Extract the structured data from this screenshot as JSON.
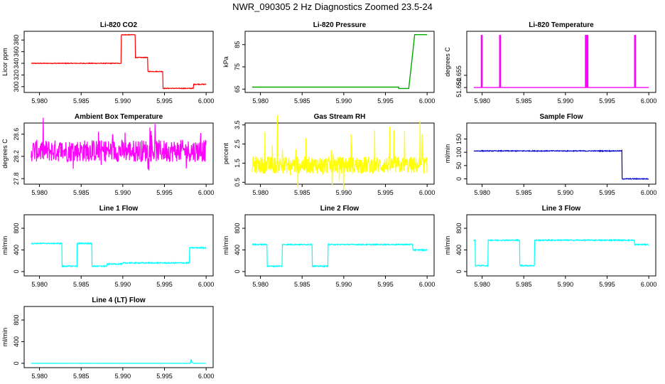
{
  "title": "NWR_090305  2 Hz Diagnostics Zoomed 23.5-24",
  "chart_data": [
    {
      "type": "line",
      "id": "co2",
      "title": "Li-820 CO2",
      "ylabel": "Licor ppm",
      "color": "#ff0000",
      "xlim": [
        5.979,
        6.0
      ],
      "ylim": [
        290,
        395
      ],
      "xticks": [
        "5.980",
        "5.985",
        "5.990",
        "5.995",
        "6.000"
      ],
      "yticks": [
        "300",
        "320",
        "340",
        "360",
        "380"
      ],
      "noise": 0.6,
      "spike": 0,
      "x": [
        5.979,
        5.9898,
        5.9898,
        5.9915,
        5.9915,
        5.993,
        5.993,
        5.9948,
        5.9948,
        5.9985,
        5.9985,
        6.0
      ],
      "y": [
        340,
        340,
        389,
        389,
        350,
        350,
        326,
        326,
        297,
        297,
        304,
        304
      ]
    },
    {
      "type": "line",
      "id": "pressure",
      "title": "Li-820 Pressure",
      "ylabel": "kPa",
      "color": "#00aa00",
      "xlim": [
        5.979,
        6.0
      ],
      "ylim": [
        63.5,
        91
      ],
      "xticks": [
        "5.980",
        "5.985",
        "5.990",
        "5.995",
        "6.000"
      ],
      "yticks": [
        "65",
        "75",
        "85"
      ],
      "noise": 0,
      "spike": 0,
      "x": [
        5.979,
        5.9966,
        5.9966,
        5.9978,
        5.9983,
        5.9985,
        6.0
      ],
      "y": [
        65.9,
        65.9,
        65.3,
        65.3,
        82,
        89.5,
        89.5
      ]
    },
    {
      "type": "line",
      "id": "licor-temp",
      "title": "Li-820 Temperature",
      "ylabel": "degrees C",
      "color": "#ff00ff",
      "xlim": [
        5.979,
        6.0
      ],
      "ylim": [
        51.648,
        51.673
      ],
      "xticks": [
        "5.980",
        "5.985",
        "5.990",
        "5.995",
        "6.000"
      ],
      "yticks": [
        "51.650",
        "51.655"
      ],
      "noise": 0,
      "spike": 0,
      "x": [
        5.979,
        5.9799,
        5.9799,
        5.98,
        5.98,
        5.9821,
        5.9821,
        5.9822,
        5.9822,
        5.9924,
        5.9924,
        5.9925,
        5.9925,
        5.9926,
        5.9926,
        5.9927,
        5.9927,
        5.9983,
        5.9983,
        5.9984,
        5.9984,
        6.0
      ],
      "y": [
        51.65,
        51.65,
        51.6713,
        51.6713,
        51.65,
        51.65,
        51.6713,
        51.6713,
        51.65,
        51.65,
        51.6713,
        51.6713,
        51.65,
        51.65,
        51.6713,
        51.6713,
        51.65,
        51.65,
        51.6713,
        51.6713,
        51.65,
        51.65
      ]
    },
    {
      "type": "line",
      "id": "ambient-temp",
      "title": "Ambient Box Temperature",
      "ylabel": "degrees C",
      "color": "#ff00ff",
      "xlim": [
        5.979,
        6.0
      ],
      "ylim": [
        27.7,
        28.8
      ],
      "xticks": [
        "5.980",
        "5.985",
        "5.990",
        "5.995",
        "6.000"
      ],
      "yticks": [
        "27.8",
        "28.2",
        "28.6"
      ],
      "noise": 0.2,
      "spike": 0.35,
      "x": [
        5.979,
        6.0
      ],
      "y": [
        28.3,
        28.3
      ]
    },
    {
      "type": "line",
      "id": "gas-rh",
      "title": "Gas Stream RH",
      "ylabel": "percent",
      "color": "#ffff00",
      "xlim": [
        5.979,
        6.0
      ],
      "ylim": [
        0.4,
        3.6
      ],
      "xticks": [
        "5.980",
        "5.985",
        "5.990",
        "5.995",
        "6.000"
      ],
      "yticks": [
        "0.5",
        "1.5",
        "2.5",
        "3.5"
      ],
      "noise": 0.45,
      "spike": 1.8,
      "x": [
        5.979,
        6.0
      ],
      "y": [
        1.4,
        1.4
      ]
    },
    {
      "type": "line",
      "id": "sample-flow",
      "title": "Sample Flow",
      "ylabel": "ml/min",
      "color": "#0000cc",
      "xlim": [
        5.979,
        6.0
      ],
      "ylim": [
        -20,
        210
      ],
      "xticks": [
        "5.980",
        "5.985",
        "5.990",
        "5.995",
        "6.000"
      ],
      "yticks": [
        "0",
        "50",
        "100",
        "150"
      ],
      "noise": 1.5,
      "spike": 0,
      "x": [
        5.979,
        5.9968,
        5.9968,
        6.0
      ],
      "y": [
        105,
        105,
        0,
        0
      ]
    },
    {
      "type": "line",
      "id": "line1-flow",
      "title": "Line 1 Flow",
      "ylabel": "ml/min",
      "color": "#00ffff",
      "xlim": [
        5.979,
        6.0
      ],
      "ylim": [
        -80,
        1050
      ],
      "xticks": [
        "5.980",
        "5.985",
        "5.990",
        "5.995",
        "6.000"
      ],
      "yticks": [
        "0",
        "400",
        "800"
      ],
      "noise": 10,
      "spike": 0,
      "x": [
        5.979,
        5.9827,
        5.9827,
        5.9845,
        5.9845,
        5.9863,
        5.9863,
        5.9881,
        5.9881,
        5.99,
        5.99,
        5.998,
        5.998,
        6.0
      ],
      "y": [
        520,
        520,
        100,
        100,
        520,
        520,
        100,
        100,
        140,
        140,
        160,
        160,
        440,
        440
      ]
    },
    {
      "type": "line",
      "id": "line2-flow",
      "title": "Line 2 Flow",
      "ylabel": "ml/min",
      "color": "#00ffff",
      "xlim": [
        5.979,
        6.0
      ],
      "ylim": [
        -80,
        1050
      ],
      "xticks": [
        "5.980",
        "5.985",
        "5.990",
        "5.995",
        "6.000"
      ],
      "yticks": [
        "0",
        "400",
        "800"
      ],
      "noise": 10,
      "spike": 0,
      "x": [
        5.979,
        5.9808,
        5.9808,
        5.9826,
        5.9826,
        5.9862,
        5.9862,
        5.9881,
        5.9881,
        5.9983,
        5.9983,
        6.0
      ],
      "y": [
        500,
        500,
        100,
        100,
        500,
        500,
        100,
        100,
        500,
        500,
        400,
        400
      ]
    },
    {
      "type": "line",
      "id": "line3-flow",
      "title": "Line 3 Flow",
      "ylabel": "ml/min",
      "color": "#00ffff",
      "xlim": [
        5.979,
        6.0
      ],
      "ylim": [
        -80,
        1050
      ],
      "xticks": [
        "5.980",
        "5.985",
        "5.990",
        "5.995",
        "6.000"
      ],
      "yticks": [
        "0",
        "400",
        "800"
      ],
      "noise": 10,
      "spike": 0,
      "x": [
        5.979,
        5.9792,
        5.9792,
        5.9807,
        5.9807,
        5.9845,
        5.9845,
        5.9863,
        5.9863,
        5.9983,
        5.9983,
        6.0
      ],
      "y": [
        580,
        580,
        110,
        110,
        580,
        580,
        110,
        110,
        580,
        580,
        500,
        500
      ]
    },
    {
      "type": "line",
      "id": "line4-flow",
      "title": "Line 4 (LT) Flow",
      "ylabel": "ml/min",
      "color": "#00ffff",
      "xlim": [
        5.979,
        6.0
      ],
      "ylim": [
        -80,
        1050
      ],
      "xticks": [
        "5.980",
        "5.985",
        "5.990",
        "5.995",
        "6.000"
      ],
      "yticks": [
        "0",
        "400",
        "800"
      ],
      "noise": 2,
      "spike": 0,
      "x": [
        5.979,
        5.9981,
        5.9982,
        5.9983,
        5.9985,
        6.0
      ],
      "y": [
        0,
        0,
        80,
        20,
        0,
        0
      ]
    }
  ]
}
